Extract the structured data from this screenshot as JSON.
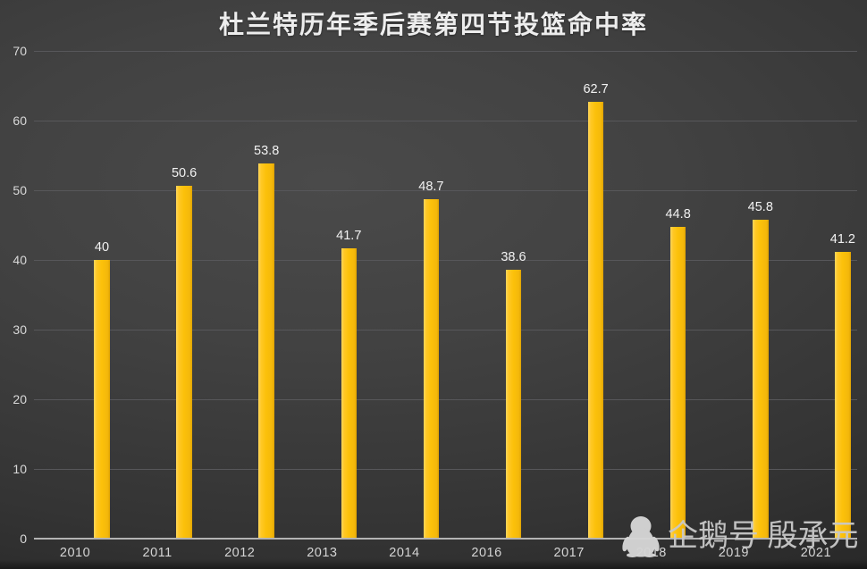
{
  "chart_data": {
    "type": "bar",
    "title": "杜兰特历年季后赛第四节投篮命中率",
    "categories": [
      "2010",
      "2011",
      "2012",
      "2013",
      "2014",
      "2016",
      "2017",
      "2018",
      "2019",
      "2021"
    ],
    "values": [
      40,
      50.6,
      53.8,
      41.7,
      48.7,
      38.6,
      62.7,
      44.8,
      45.8,
      41.2
    ],
    "data_labels": [
      "40",
      "50.6",
      "53.8",
      "41.7",
      "48.7",
      "38.6",
      "62.7",
      "44.8",
      "45.8",
      "41.2"
    ],
    "xlabel": "",
    "ylabel": "",
    "ylim": [
      0,
      70
    ],
    "yticks": [
      0,
      10,
      20,
      30,
      40,
      50,
      60,
      70
    ],
    "grid": true,
    "legend": false
  },
  "watermark": {
    "icon": "penguin-icon",
    "text": "企鹅号 殷承元"
  },
  "colors": {
    "background_center": "#4a4a4a",
    "background_edge": "#202020",
    "bar_gold": "#fcc10a",
    "bar_gold_light": "#ffd65c",
    "bar_gold_dark": "#dfa303",
    "gridline": "#57575a",
    "axis_line": "#b3b3b3",
    "tick_text": "#d9d9d9",
    "data_label_text": "#f2f2f2",
    "title_text": "#ededed",
    "watermark_gray": "#c9c9c9",
    "penguin_gray": "#d6d6d6"
  }
}
